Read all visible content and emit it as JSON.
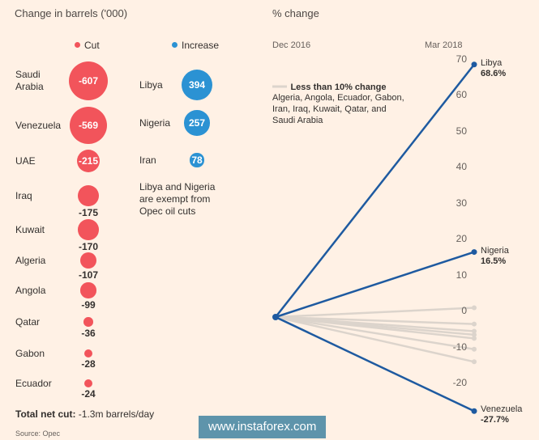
{
  "left_panel": {
    "title": "Change in barrels ('000)",
    "legend_cut": "Cut",
    "legend_increase": "Increase",
    "cut_color": "#f2545b",
    "increase_color": "#2b92d3",
    "note": "Libya and Nigeria are exempt from Opec oil cuts",
    "total_label": "Total net cut:",
    "total_value": "-1.3m barrels/day",
    "source": "Source: Opec"
  },
  "right_panel": {
    "title": "% change",
    "start_label": "Dec 2016",
    "end_label": "Mar 2018",
    "legend_title": "Less than 10% change",
    "legend_body": "Algeria, Angola, Ecuador, Gabon, Iran, Iraq, Kuwait, Qatar, and Saudi Arabia",
    "line_color": "#1e5aa0",
    "muted_color": "#dcd4cc"
  },
  "chart_data": [
    {
      "type": "bubble",
      "title": "Change in barrels ('000)",
      "series": [
        {
          "name": "Cut",
          "categories": [
            "Saudi Arabia",
            "Venezuela",
            "UAE",
            "Iraq",
            "Kuwait",
            "Algeria",
            "Angola",
            "Qatar",
            "Gabon",
            "Ecuador"
          ],
          "values": [
            -607,
            -569,
            -215,
            -175,
            -170,
            -107,
            -99,
            -36,
            -28,
            -24
          ],
          "labels": [
            "-607",
            "-569",
            "-215",
            "-175",
            "-170",
            "-107",
            "-99",
            "-36",
            "-28",
            "-24"
          ]
        },
        {
          "name": "Increase",
          "categories": [
            "Libya",
            "Nigeria",
            "Iran"
          ],
          "values": [
            394,
            257,
            78
          ],
          "labels": [
            "394",
            "257",
            "78"
          ]
        }
      ]
    },
    {
      "type": "line",
      "title": "% change",
      "x": [
        "Dec 2016",
        "Mar 2018"
      ],
      "ylim": [
        -30,
        70
      ],
      "yticks": [
        70,
        60,
        50,
        40,
        30,
        20,
        10,
        0,
        -10,
        -20
      ],
      "highlighted": [
        {
          "name": "Libya",
          "values": [
            0,
            68.6
          ],
          "label": "68.6%"
        },
        {
          "name": "Nigeria",
          "values": [
            0,
            16.5
          ],
          "label": "16.5%"
        },
        {
          "name": "Venezuela",
          "values": [
            0,
            -27.7
          ],
          "label": "-27.7%"
        }
      ],
      "muted": [
        {
          "values": [
            0,
            1.0
          ]
        },
        {
          "values": [
            0,
            -3.5
          ]
        },
        {
          "values": [
            0,
            -5.5
          ]
        },
        {
          "values": [
            0,
            -6.5
          ]
        },
        {
          "values": [
            0,
            -7.5
          ]
        },
        {
          "values": [
            0,
            -10.5
          ]
        },
        {
          "values": [
            0,
            -14.0
          ]
        }
      ]
    }
  ],
  "watermark": "www.instaforex.com"
}
